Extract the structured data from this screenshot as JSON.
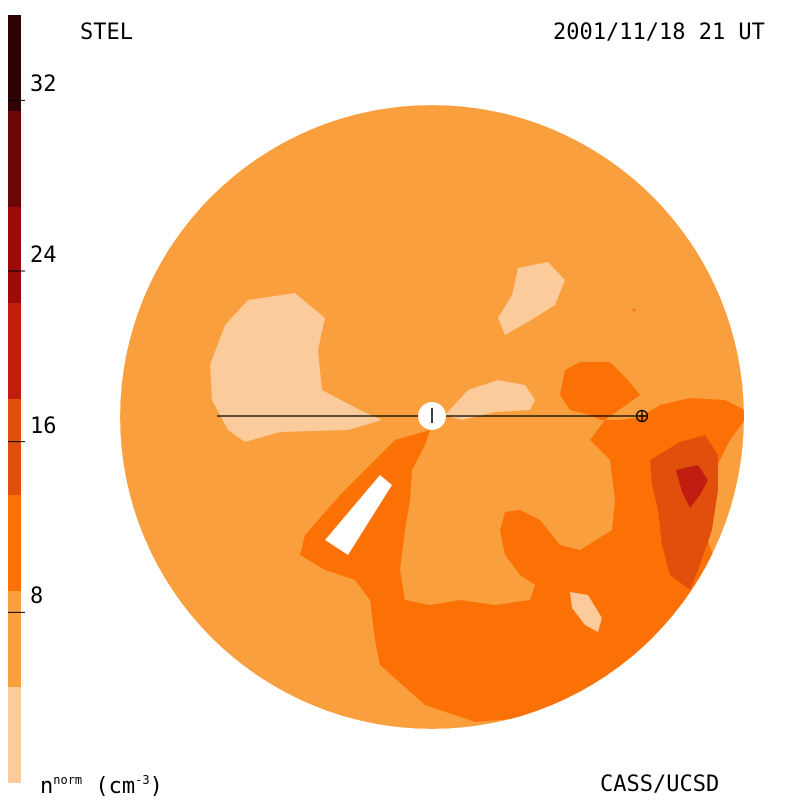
{
  "header": {
    "left": "STEL",
    "right": "2001/11/18 21 UT"
  },
  "footer": {
    "unit_main": "n",
    "unit_sup": "norm",
    "unit_tail": "(cm",
    "unit_exp": "-3",
    "unit_close": ")",
    "credit": "CASS/UCSD"
  },
  "colors": {
    "levels": [
      "#fbcb9b",
      "#f99f3d",
      "#fb7106",
      "#e04f0b",
      "#c21b0f",
      "#9c0a0a",
      "#6b0606",
      "#2f0303"
    ],
    "observer_line": "#000000",
    "sun_fill": "#ffffff"
  },
  "chart_data": {
    "type": "heatmap",
    "title": "STEL",
    "colorbar": {
      "label": "n^norm (cm^-3)",
      "min": 0,
      "max": 36,
      "step": 4,
      "tick_labels": [
        "8",
        "16",
        "24",
        "32"
      ],
      "tick_values": [
        8,
        16,
        24,
        32
      ]
    },
    "dominant_level": [
      4,
      8
    ],
    "markers": [
      {
        "name": "Sun",
        "symbol": "circle"
      },
      {
        "name": "Earth",
        "symbol": "circle-plus"
      }
    ]
  }
}
